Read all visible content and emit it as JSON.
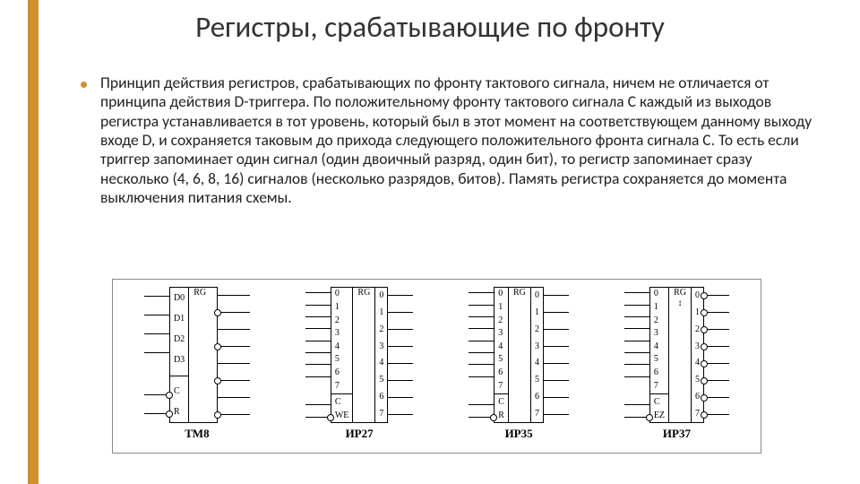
{
  "title": "Регистры, срабатывающие по фронту",
  "body": "Принцип действия регистров, срабатывающих по фронту тактового сигнала, ничем не отличается от принципа действия D-триггера. По положительному фронту тактового сигнала C каждый из выходов регистра устанавливается в тот уровень, который был в этот момент на соответствующем данному выходу входе D, и сохраняется таковым до прихода следующего положительного фронта сигнала C. То есть если триггер запоминает один сигнал (один двоичный разряд, один бит), то регистр запоминает сразу несколько (4, 6, 8, 16) сигналов (несколько разрядов, битов). Память регистра сохраняется до момента выключения питания схемы.",
  "accent_color": "#d09030",
  "registers": [
    {
      "name": "ТМ8",
      "header": "RG",
      "left_pins": [
        "D0",
        "D1",
        "D2",
        "D3",
        "—",
        "C",
        "R"
      ],
      "left_inv": [
        false,
        false,
        false,
        false,
        null,
        true,
        true
      ],
      "right_out": [
        true,
        true,
        true,
        true
      ],
      "right_inv_out": [
        true,
        true,
        true,
        true
      ]
    },
    {
      "name": "ИР27",
      "header": "RG",
      "left_pins": [
        "0",
        "1",
        "2",
        "3",
        "4",
        "5",
        "6",
        "7",
        "—",
        "C",
        "WE"
      ],
      "left_inv": [
        false,
        false,
        false,
        false,
        false,
        false,
        false,
        false,
        null,
        false,
        true
      ],
      "right_labels": [
        "0",
        "1",
        "2",
        "3",
        "4",
        "5",
        "6",
        "7"
      ]
    },
    {
      "name": "ИР35",
      "header": "RG",
      "left_pins": [
        "0",
        "1",
        "2",
        "3",
        "4",
        "5",
        "6",
        "7",
        "—",
        "C",
        "R"
      ],
      "left_inv": [
        false,
        false,
        false,
        false,
        false,
        false,
        false,
        false,
        null,
        false,
        true
      ],
      "right_labels": [
        "0",
        "1",
        "2",
        "3",
        "4",
        "5",
        "6",
        "7"
      ]
    },
    {
      "name": "ИР37",
      "header": "RG",
      "header_extra": "↕",
      "left_pins": [
        "0",
        "1",
        "2",
        "3",
        "4",
        "5",
        "6",
        "7",
        "—",
        "C",
        "EZ"
      ],
      "left_inv": [
        false,
        false,
        false,
        false,
        false,
        false,
        false,
        false,
        null,
        false,
        true
      ],
      "right_labels": [
        "0",
        "1",
        "2",
        "3",
        "4",
        "5",
        "6",
        "7"
      ],
      "right_inv": true
    }
  ]
}
